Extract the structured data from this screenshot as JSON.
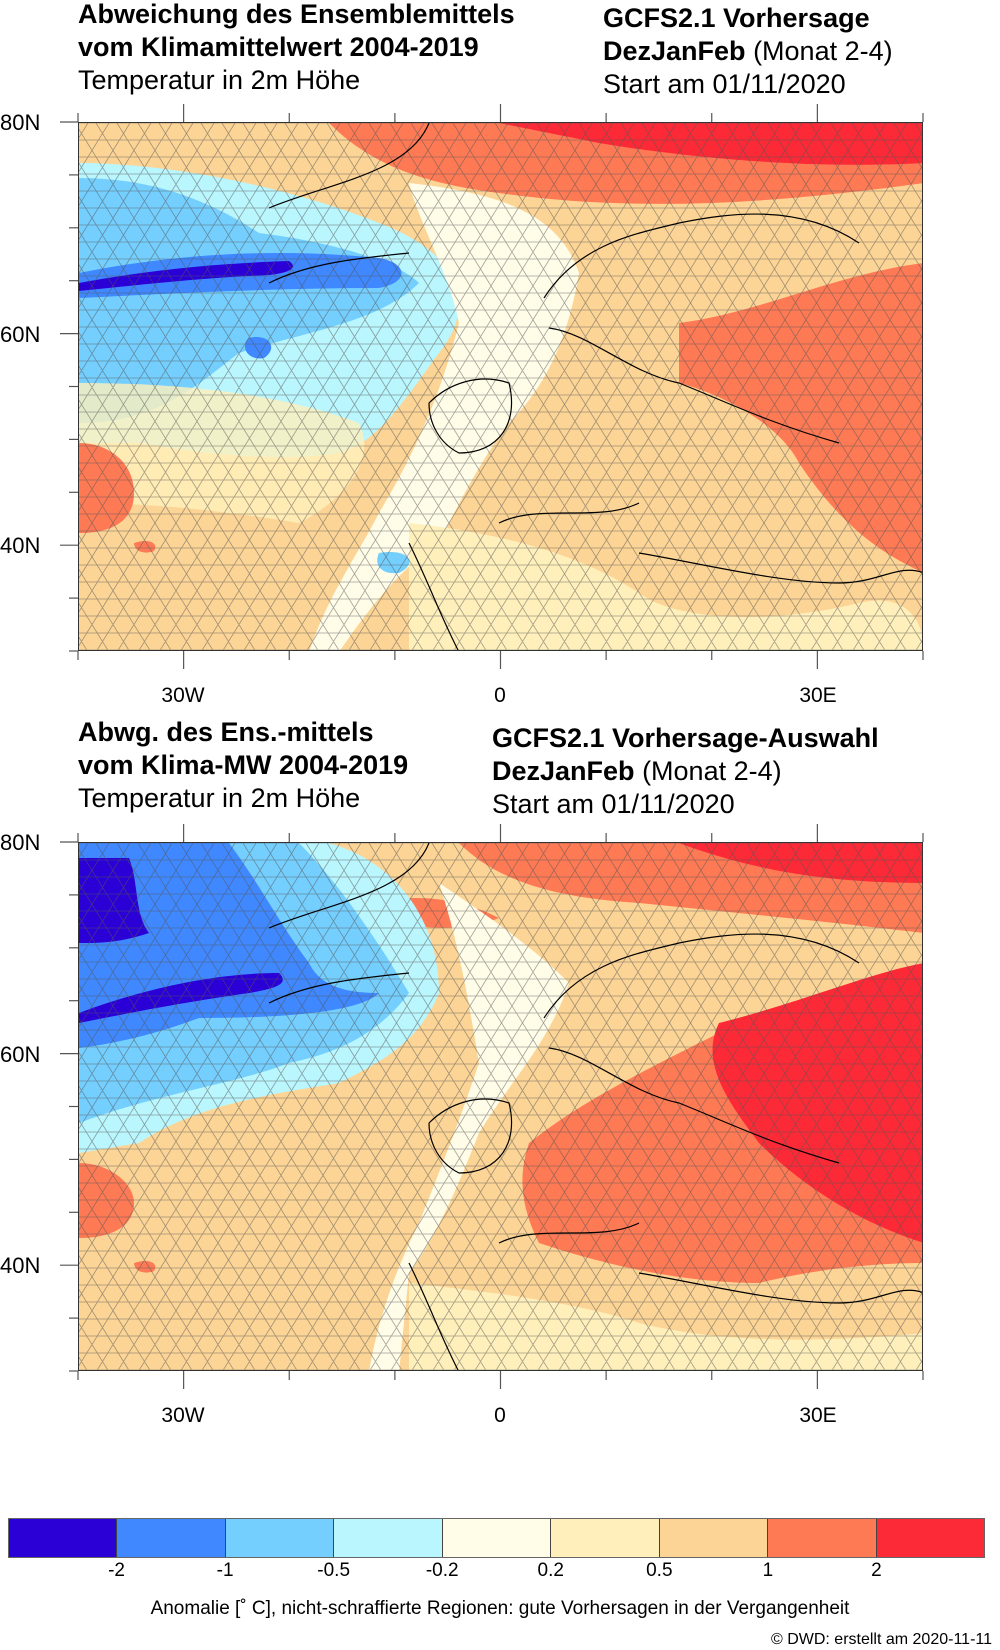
{
  "panels": [
    {
      "title_left": [
        "Abweichung des Ensemblemittels",
        "vom Klimamittelwert 2004-2019"
      ],
      "subtitle_left": "Temperatur in 2m Höhe",
      "title_right": "GCFS2.1 Vorhersage",
      "season": "DezJanFeb",
      "season_note": "(Monat 2-4)",
      "start": "Start am 01/11/2020"
    },
    {
      "title_left": [
        "Abwg. des Ens.-mittels",
        "vom Klima-MW 2004-2019"
      ],
      "subtitle_left": "Temperatur in 2m Höhe",
      "title_right": "GCFS2.1 Vorhersage-Auswahl",
      "season": "DezJanFeb",
      "season_note": "(Monat 2-4)",
      "start": "Start am 01/11/2020"
    }
  ],
  "axes": {
    "lat_labels": [
      "80N",
      "60N",
      "40N"
    ],
    "lon_labels": [
      "30W",
      "0",
      "30E"
    ],
    "lat_range": [
      30,
      80
    ],
    "lon_range": [
      -40,
      40
    ]
  },
  "legend": {
    "colors": [
      "#2a00d6",
      "#3f88ff",
      "#74cffe",
      "#baf6fd",
      "#fffde8",
      "#fff0bb",
      "#fcd596",
      "#fe7a55",
      "#fc2a37"
    ],
    "ticks": [
      "-2",
      "-1",
      "-0.5",
      "-0.2",
      "0.2",
      "0.5",
      "1",
      "2"
    ]
  },
  "footer": "Anomalie [˚ C], nicht-schraffierte Regionen: gute Vorhersagen in der Vergangenheit",
  "credit": "©  DWD: erstellt am 2020-11-11"
}
